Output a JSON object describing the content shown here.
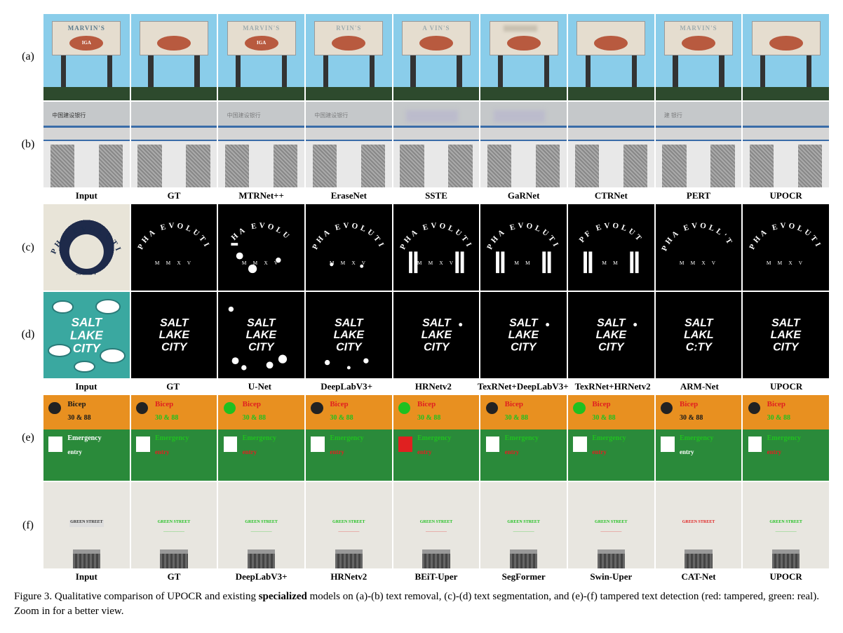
{
  "rows_ab_labels": [
    "Input",
    "GT",
    "MTRNet++",
    "EraseNet",
    "SSTE",
    "GaRNet",
    "CTRNet",
    "PERT",
    "UPOCR"
  ],
  "rows_cd_labels": [
    "Input",
    "GT",
    "U-Net",
    "DeepLabV3+",
    "HRNetv2",
    "TexRNet+DeepLabV3+",
    "TexRNet+HRNetv2",
    "ARM-Net",
    "UPOCR"
  ],
  "rows_ef_labels": [
    "Input",
    "GT",
    "DeepLabV3+",
    "HRNetv2",
    "BEiT-Uper",
    "SegFormer",
    "Swin-Uper",
    "CAT-Net",
    "UPOCR"
  ],
  "row_tags": [
    "(a)",
    "(b)",
    "(c)",
    "(d)",
    "(e)",
    "(f)"
  ],
  "caption": "Figure 3. Qualitative comparison of UPOCR and existing ",
  "caption_bold": "specialized",
  "caption_tail": " models on (a)-(b) text removal, (c)-(d) text segmentation, and (e)-(f) tampered text detection (red: tampered, green: real). Zoom in for a better view.",
  "colors": {
    "sky": "#8acdea",
    "sign_panel": "#e5ddcf",
    "oval": "#b85a3f",
    "sign_text": "#5a7a8c",
    "bank_blue": "#3a6ca8",
    "seg_bg": "#000000",
    "seg_fg": "#ffffff",
    "teal": "#3aa8a0",
    "tampered_red": "#e02020",
    "real_green": "#20c020",
    "emergency_orange": "#e89020",
    "emergency_green_bg": "#2a8a3a"
  },
  "row_a": {
    "sign_text": "MARVIN'S",
    "oval_text": "IGA",
    "variants": [
      {
        "show_text": true,
        "show_iga": true,
        "faded": false
      },
      {
        "show_text": false,
        "show_iga": false,
        "faded": false
      },
      {
        "show_text": true,
        "show_iga": true,
        "faded": true
      },
      {
        "show_text": true,
        "show_iga": false,
        "faded": true,
        "partial": "RVIN'S"
      },
      {
        "show_text": true,
        "show_iga": false,
        "faded": true,
        "partial": "A  VIN'S"
      },
      {
        "show_text": false,
        "show_iga": false,
        "faded": true,
        "smudge": true
      },
      {
        "show_text": false,
        "show_iga": false,
        "faded": false
      },
      {
        "show_text": true,
        "show_iga": false,
        "faded": true
      },
      {
        "show_text": false,
        "show_iga": false,
        "faded": false
      }
    ]
  },
  "row_b": {
    "text": "中国建设银行",
    "variants": [
      {
        "text": "中国建设银行"
      },
      {
        "text": ""
      },
      {
        "text": "中国建设银行",
        "faint": true
      },
      {
        "text": "中国建设银行",
        "faint": true
      },
      {
        "text": "",
        "smudge": true
      },
      {
        "text": "",
        "smudge": true
      },
      {
        "text": ""
      },
      {
        "text": "建 银行",
        "faint": true
      },
      {
        "text": ""
      }
    ]
  },
  "row_c": {
    "arc_text": "ALPHA EVOLUTION",
    "sub_text": "M  M  X  V",
    "variants": [
      {
        "input": true
      },
      {
        "clean": true
      },
      {
        "noise": "heavy",
        "arc": "HA EVOLU"
      },
      {
        "noise": "med",
        "arc": "LPHA EVOLUTIO"
      },
      {
        "noise": "low",
        "arc": "ALPHA EVOLUTION",
        "bars": true
      },
      {
        "noise": "low",
        "arc": "LPHA EVOLUTIO",
        "bars": true,
        "sub": "M  M"
      },
      {
        "noise": "low",
        "arc": "PF   EVOLUT",
        "bars": true,
        "sub": "M  M"
      },
      {
        "noise": "none",
        "arc": "LPHA EVOLL'T O"
      },
      {
        "noise": "none",
        "arc": "ALPHA EVOLUTION"
      }
    ]
  },
  "row_d": {
    "lines": [
      "SALT",
      "LAKE",
      "CITY"
    ],
    "variants": [
      {
        "input": true
      },
      {
        "clean": true
      },
      {
        "noise": "heavy"
      },
      {
        "noise": "med"
      },
      {
        "noise": "low",
        "extra_dot": true
      },
      {
        "noise": "low",
        "extra_dot": true
      },
      {
        "noise": "low",
        "extra_dot": true
      },
      {
        "noise": "none",
        "lines": [
          "SALT",
          "LAKL",
          "C:TY"
        ]
      },
      {
        "noise": "none"
      }
    ]
  },
  "row_e": {
    "t1": "Bicep",
    "t2": "30 & 88",
    "t3": "Emergency",
    "t4": "entry",
    "variants": [
      {
        "t1c": "black",
        "t2c": "black",
        "t3c": "white",
        "t4c": "white",
        "icon": "black"
      },
      {
        "t1c": "red",
        "t2c": "green",
        "t3c": "green",
        "t4c": "red",
        "icon": "green"
      },
      {
        "t1c": "red",
        "t2c": "green",
        "t3c": "green",
        "t4c": "red",
        "icon": "green",
        "icon_bg": "green"
      },
      {
        "t1c": "red",
        "t2c": "green",
        "t3c": "green",
        "t4c": "red",
        "icon": "black"
      },
      {
        "t1c": "red",
        "t2c": "green",
        "t3c": "green",
        "t4c": "red",
        "icon": "green",
        "icon_bg": "green",
        "exit_red": true
      },
      {
        "t1c": "red",
        "t2c": "green",
        "t3c": "green",
        "t4c": "red",
        "icon": "black"
      },
      {
        "t1c": "red",
        "t2c": "green",
        "t3c": "green",
        "t4c": "red",
        "icon": "green",
        "icon_bg": "green"
      },
      {
        "t1c": "red",
        "t2c": "black",
        "t3c": "green",
        "t4c": "white",
        "icon": "black"
      },
      {
        "t1c": "red",
        "t2c": "green",
        "t3c": "green",
        "t4c": "red",
        "icon": "black"
      }
    ]
  },
  "row_f": {
    "plaque": "GREEN STREET",
    "variants": [
      {
        "p1": "black"
      },
      {
        "p1": "green",
        "p2": "green"
      },
      {
        "p1": "green",
        "p2": "green"
      },
      {
        "p1": "green",
        "p2": "red"
      },
      {
        "p1": "green",
        "p2": "red"
      },
      {
        "p1": "green",
        "p2": "green"
      },
      {
        "p1": "green",
        "p2": "red"
      },
      {
        "p1": "red",
        "p2": ""
      },
      {
        "p1": "green",
        "p2": "green"
      }
    ]
  }
}
